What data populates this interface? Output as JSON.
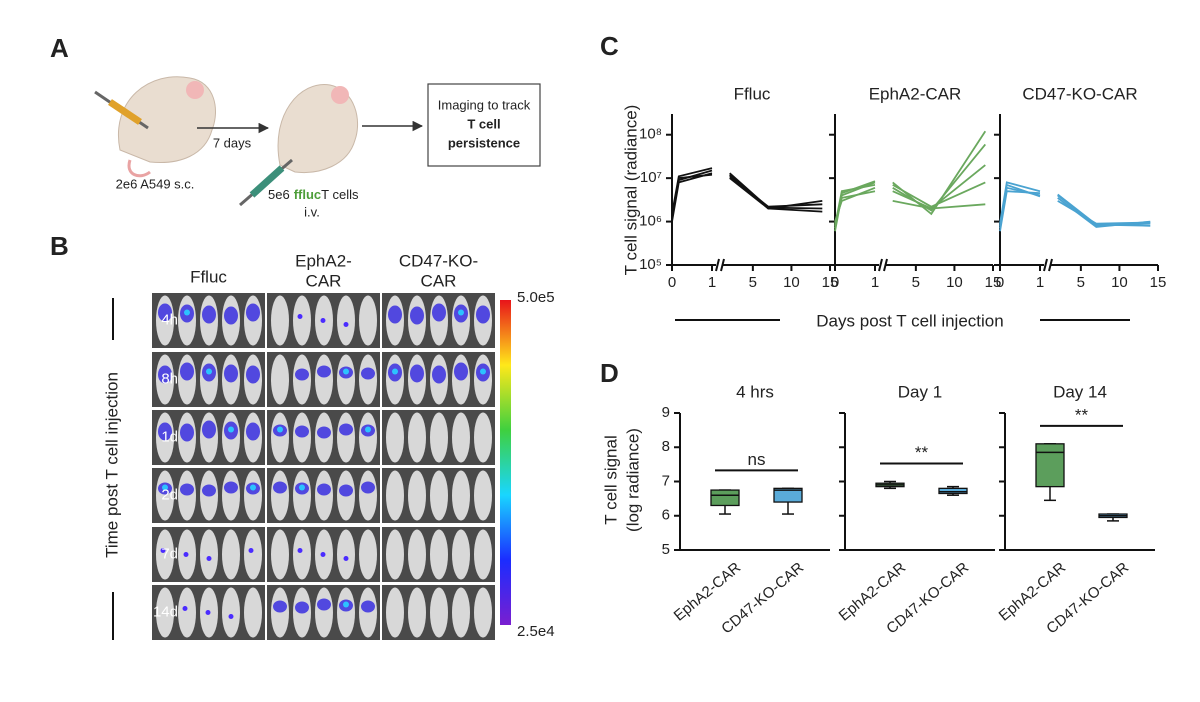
{
  "panel_a": {
    "label": "A",
    "source_caption": "2e6 A549 s.c.",
    "interval": "7 days",
    "injection_caption": [
      "5e6",
      "ffluc",
      "T cells"
    ],
    "injection_route": "i.v.",
    "box_text": [
      "Imaging to track",
      "T cell",
      "persistence"
    ]
  },
  "panel_b": {
    "label": "B",
    "columns": [
      [
        "Ffluc"
      ],
      [
        "EphA2-",
        "CAR"
      ],
      [
        "CD47-KO-",
        "CAR"
      ]
    ],
    "rows": [
      "4h",
      "8h",
      "1d",
      "2d",
      "7d",
      "14d"
    ],
    "axis_title": "Time post T cell injection",
    "colorbar": [
      "5.0e5",
      "2.5e4"
    ]
  },
  "chart_data": [
    {
      "type": "line",
      "label": "C",
      "ylabel": "T cell signal (radiance)",
      "xlabel": "Days post T cell injection",
      "log_y": true,
      "ylim": [
        100000,
        300000000
      ],
      "yticks": [
        {
          "value": 100000,
          "label": "10⁵"
        },
        {
          "value": 1000000,
          "label": "10⁶"
        },
        {
          "value": 10000000,
          "label": "10⁷"
        },
        {
          "value": 100000000,
          "label": "10⁸"
        }
      ],
      "x_segments": [
        [
          0,
          1.1
        ],
        [
          1,
          15
        ]
      ],
      "xticks": [
        0,
        1,
        5,
        10,
        15
      ],
      "x": [
        0,
        0.17,
        1,
        2,
        7,
        14
      ],
      "panels": [
        {
          "title": "Ffluc",
          "series": [
            {
              "color": "#111111",
              "values": [
                1200000,
                9000000,
                15000000,
                12000000,
                2000000,
                1700000
              ]
            },
            {
              "color": "#111111",
              "values": [
                1500000,
                11000000,
                17000000,
                13000000,
                2100000,
                2000000
              ]
            },
            {
              "color": "#111111",
              "values": [
                1000000,
                8000000,
                13000000,
                11000000,
                2200000,
                2500000
              ]
            },
            {
              "color": "#111111",
              "values": [
                1300000,
                10000000,
                12000000,
                10000000,
                2000000,
                3000000
              ]
            }
          ]
        },
        {
          "title": "EphA2-CAR",
          "series": [
            {
              "color": "#6aa85e",
              "values": [
                600000,
                4000000,
                8000000,
                8000000,
                1500000,
                120000000
              ]
            },
            {
              "color": "#6aa85e",
              "values": [
                800000,
                5000000,
                7000000,
                6000000,
                1800000,
                60000000
              ]
            },
            {
              "color": "#6aa85e",
              "values": [
                1000000,
                3000000,
                6000000,
                5000000,
                2000000,
                20000000
              ]
            },
            {
              "color": "#6aa85e",
              "values": [
                700000,
                4500000,
                8500000,
                7000000,
                2200000,
                8000000
              ]
            },
            {
              "color": "#6aa85e",
              "values": [
                900000,
                3500000,
                5000000,
                3000000,
                2000000,
                2500000
              ]
            }
          ]
        },
        {
          "title": "CD47-KO-CAR",
          "series": [
            {
              "color": "#4aa3d1",
              "values": [
                700000,
                6000000,
                4000000,
                4000000,
                800000,
                900000
              ]
            },
            {
              "color": "#4aa3d1",
              "values": [
                900000,
                8000000,
                5000000,
                3500000,
                750000,
                1000000
              ]
            },
            {
              "color": "#4aa3d1",
              "values": [
                600000,
                5000000,
                4500000,
                4200000,
                850000,
                800000
              ]
            },
            {
              "color": "#4aa3d1",
              "values": [
                800000,
                7000000,
                3800000,
                3000000,
                900000,
                950000
              ]
            }
          ]
        }
      ]
    },
    {
      "type": "box",
      "label": "D",
      "ylabel": [
        "T cell signal",
        "(log radiance)"
      ],
      "ylim": [
        5,
        9
      ],
      "yticks": [
        5,
        6,
        7,
        8,
        9
      ],
      "categories": [
        "EphA2-CAR",
        "CD47-KO-CAR"
      ],
      "colors": [
        "#5c9e5c",
        "#5aabd9"
      ],
      "panels": [
        {
          "title": "4 hrs",
          "annotation": "ns",
          "boxes": [
            {
              "min": 6.05,
              "q1": 6.3,
              "median": 6.6,
              "q3": 6.75,
              "max": 6.75
            },
            {
              "min": 6.05,
              "q1": 6.4,
              "median": 6.75,
              "q3": 6.8,
              "max": 6.8
            }
          ]
        },
        {
          "title": "Day 1",
          "annotation": "**",
          "boxes": [
            {
              "min": 6.8,
              "q1": 6.85,
              "median": 6.9,
              "q3": 6.95,
              "max": 7.0
            },
            {
              "min": 6.6,
              "q1": 6.65,
              "median": 6.7,
              "q3": 6.8,
              "max": 6.85
            }
          ]
        },
        {
          "title": "Day 14",
          "annotation": "**",
          "boxes": [
            {
              "min": 6.45,
              "q1": 6.85,
              "median": 7.85,
              "q3": 8.1,
              "max": 8.1
            },
            {
              "min": 5.85,
              "q1": 5.95,
              "median": 6.0,
              "q3": 6.05,
              "max": 6.05
            }
          ]
        }
      ]
    }
  ]
}
